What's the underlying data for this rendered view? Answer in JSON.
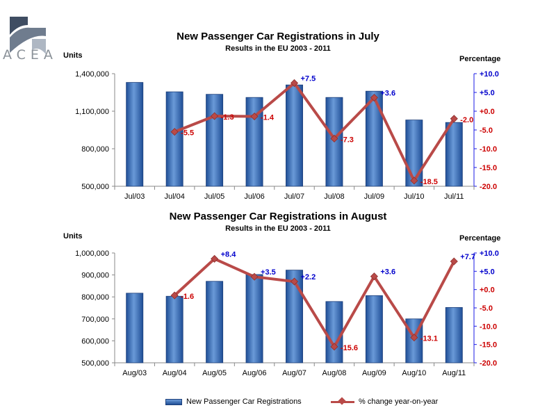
{
  "logo": {
    "text": "ACEA"
  },
  "legend": {
    "bar_label": "New Passenger Car Registrations",
    "line_label": "% change year-on-year"
  },
  "colors": {
    "bar_fill_top": "#6a9ad8",
    "bar_fill_bottom": "#1f4e96",
    "line": "#b94a48",
    "positive_label": "#0000cc",
    "negative_label": "#cc0000",
    "right_axis": "#1a1ae6"
  },
  "chart_data": [
    {
      "type": "bar",
      "title": "New Passenger Car Registrations in July",
      "subtitle": "Results in the EU 2003 - 2011",
      "ylabel": "Units",
      "y2label": "Percentage",
      "categories": [
        "Jul/03",
        "Jul/04",
        "Jul/05",
        "Jul/06",
        "Jul/07",
        "Jul/08",
        "Jul/09",
        "Jul/10",
        "Jul/11"
      ],
      "ylim": [
        500000,
        1400000
      ],
      "yticks": [
        500000,
        800000,
        1100000,
        1400000
      ],
      "ytick_labels": [
        "500,000",
        "800,000",
        "1,100,000",
        "1,400,000"
      ],
      "y2lim": [
        -20,
        10
      ],
      "y2ticks": [
        10,
        5,
        0,
        -5,
        -10,
        -15,
        -20
      ],
      "y2tick_labels": [
        "+10.0",
        "+5.0",
        "+0.0",
        "-5.0",
        "-10.0",
        "-15.0",
        "-20.0"
      ],
      "series": [
        {
          "name": "New Passenger Car Registrations",
          "type": "bar",
          "values": [
            1330000,
            1255000,
            1235000,
            1210000,
            1310000,
            1210000,
            1260000,
            1030000,
            1010000
          ]
        },
        {
          "name": "% change year-on-year",
          "type": "line",
          "axis": "right",
          "values": [
            null,
            -5.5,
            -1.3,
            -1.4,
            7.5,
            -7.3,
            3.6,
            -18.5,
            -2.0
          ],
          "labels": [
            "",
            "-5.5",
            "-1.3",
            "-1.4",
            "+7.5",
            "-7.3",
            "+3.6",
            "-18.5",
            "-2.0"
          ]
        }
      ]
    },
    {
      "type": "bar",
      "title": "New Passenger Car Registrations in August",
      "subtitle": "Results in the EU 2003 - 2011",
      "ylabel": "Units",
      "y2label": "Percentage",
      "categories": [
        "Aug/03",
        "Aug/04",
        "Aug/05",
        "Aug/06",
        "Aug/07",
        "Aug/08",
        "Aug/09",
        "Aug/10",
        "Aug/11"
      ],
      "ylim": [
        500000,
        1000000
      ],
      "yticks": [
        500000,
        600000,
        700000,
        800000,
        900000,
        1000000
      ],
      "ytick_labels": [
        "500,000",
        "600,000",
        "700,000",
        "800,000",
        "900,000",
        "1,000,000"
      ],
      "y2lim": [
        -20,
        10
      ],
      "y2ticks": [
        10,
        5,
        0,
        -5,
        -10,
        -15,
        -20
      ],
      "y2tick_labels": [
        "+10.0",
        "+5.0",
        "+0.0",
        "-5.0",
        "-10.0",
        "-15.0",
        "-20.0"
      ],
      "series": [
        {
          "name": "New Passenger Car Registrations",
          "type": "bar",
          "values": [
            817000,
            803000,
            871000,
            902000,
            922000,
            779000,
            806000,
            700000,
            752000
          ]
        },
        {
          "name": "% change year-on-year",
          "type": "line",
          "axis": "right",
          "values": [
            null,
            -1.6,
            8.4,
            3.5,
            2.2,
            -15.6,
            3.6,
            -13.1,
            7.7
          ],
          "labels": [
            "",
            "-1.6",
            "+8.4",
            "+3.5",
            "+2.2",
            "-15.6",
            "+3.6",
            "-13.1",
            "+7.7"
          ]
        }
      ]
    }
  ]
}
